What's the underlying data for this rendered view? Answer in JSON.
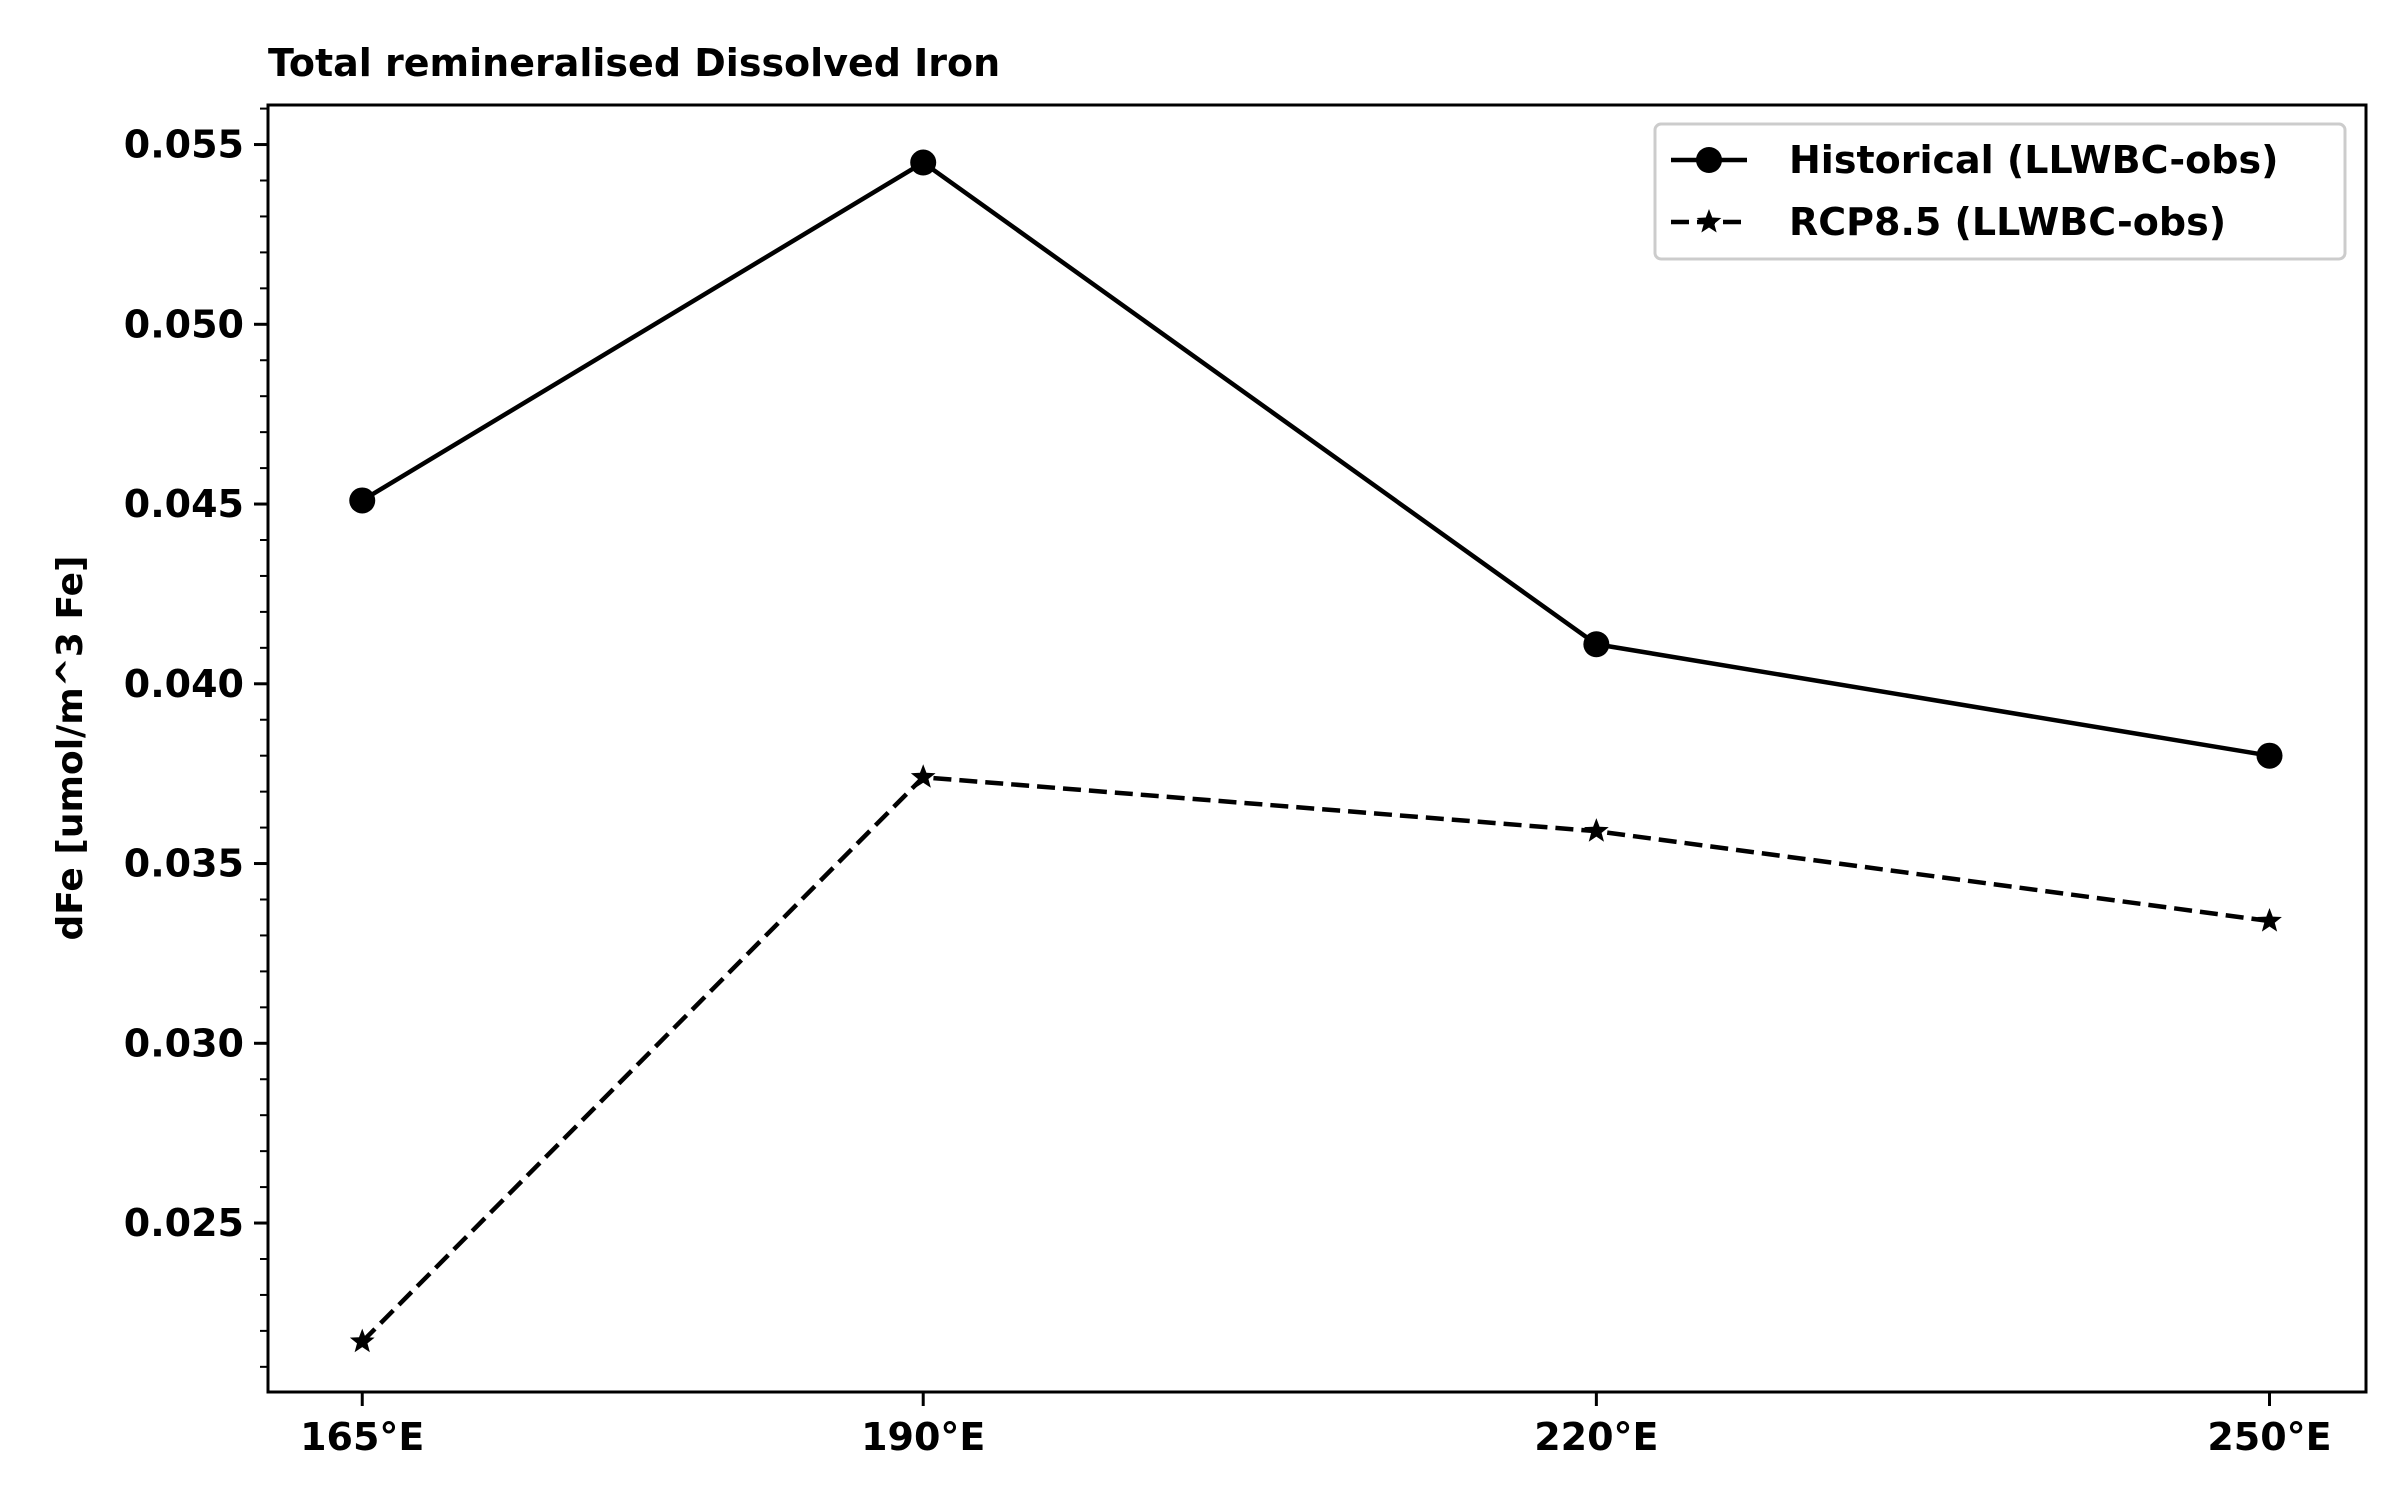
{
  "chart_data": {
    "type": "line",
    "title": "Total remineralised Dissolved Iron",
    "xlabel": "",
    "ylabel": "dFe [umol/m^3 Fe]",
    "x": [
      165,
      190,
      220,
      250
    ],
    "categories": [
      "165°E",
      "190°E",
      "220°E",
      "250°E"
    ],
    "xlim": [
      160.8,
      254.3
    ],
    "ylim": [
      0.0203,
      0.0561
    ],
    "yticks": [
      0.025,
      0.03,
      0.035,
      0.04,
      0.045,
      0.05,
      0.055
    ],
    "ytick_labels": [
      "0.025",
      "0.030",
      "0.035",
      "0.040",
      "0.045",
      "0.050",
      "0.055"
    ],
    "series": [
      {
        "name": "Historical (LLWBC-obs)",
        "values": [
          0.0451,
          0.0545,
          0.0411,
          0.038
        ],
        "line_style": "solid",
        "marker": "circle",
        "color": "#000000"
      },
      {
        "name": "RCP8.5 (LLWBC-obs)",
        "values": [
          0.0217,
          0.0374,
          0.0359,
          0.0334
        ],
        "line_style": "dashed",
        "marker": "star",
        "color": "#000000"
      }
    ],
    "legend_position": "top-right",
    "grid": false,
    "minor_ticks_y": true
  }
}
